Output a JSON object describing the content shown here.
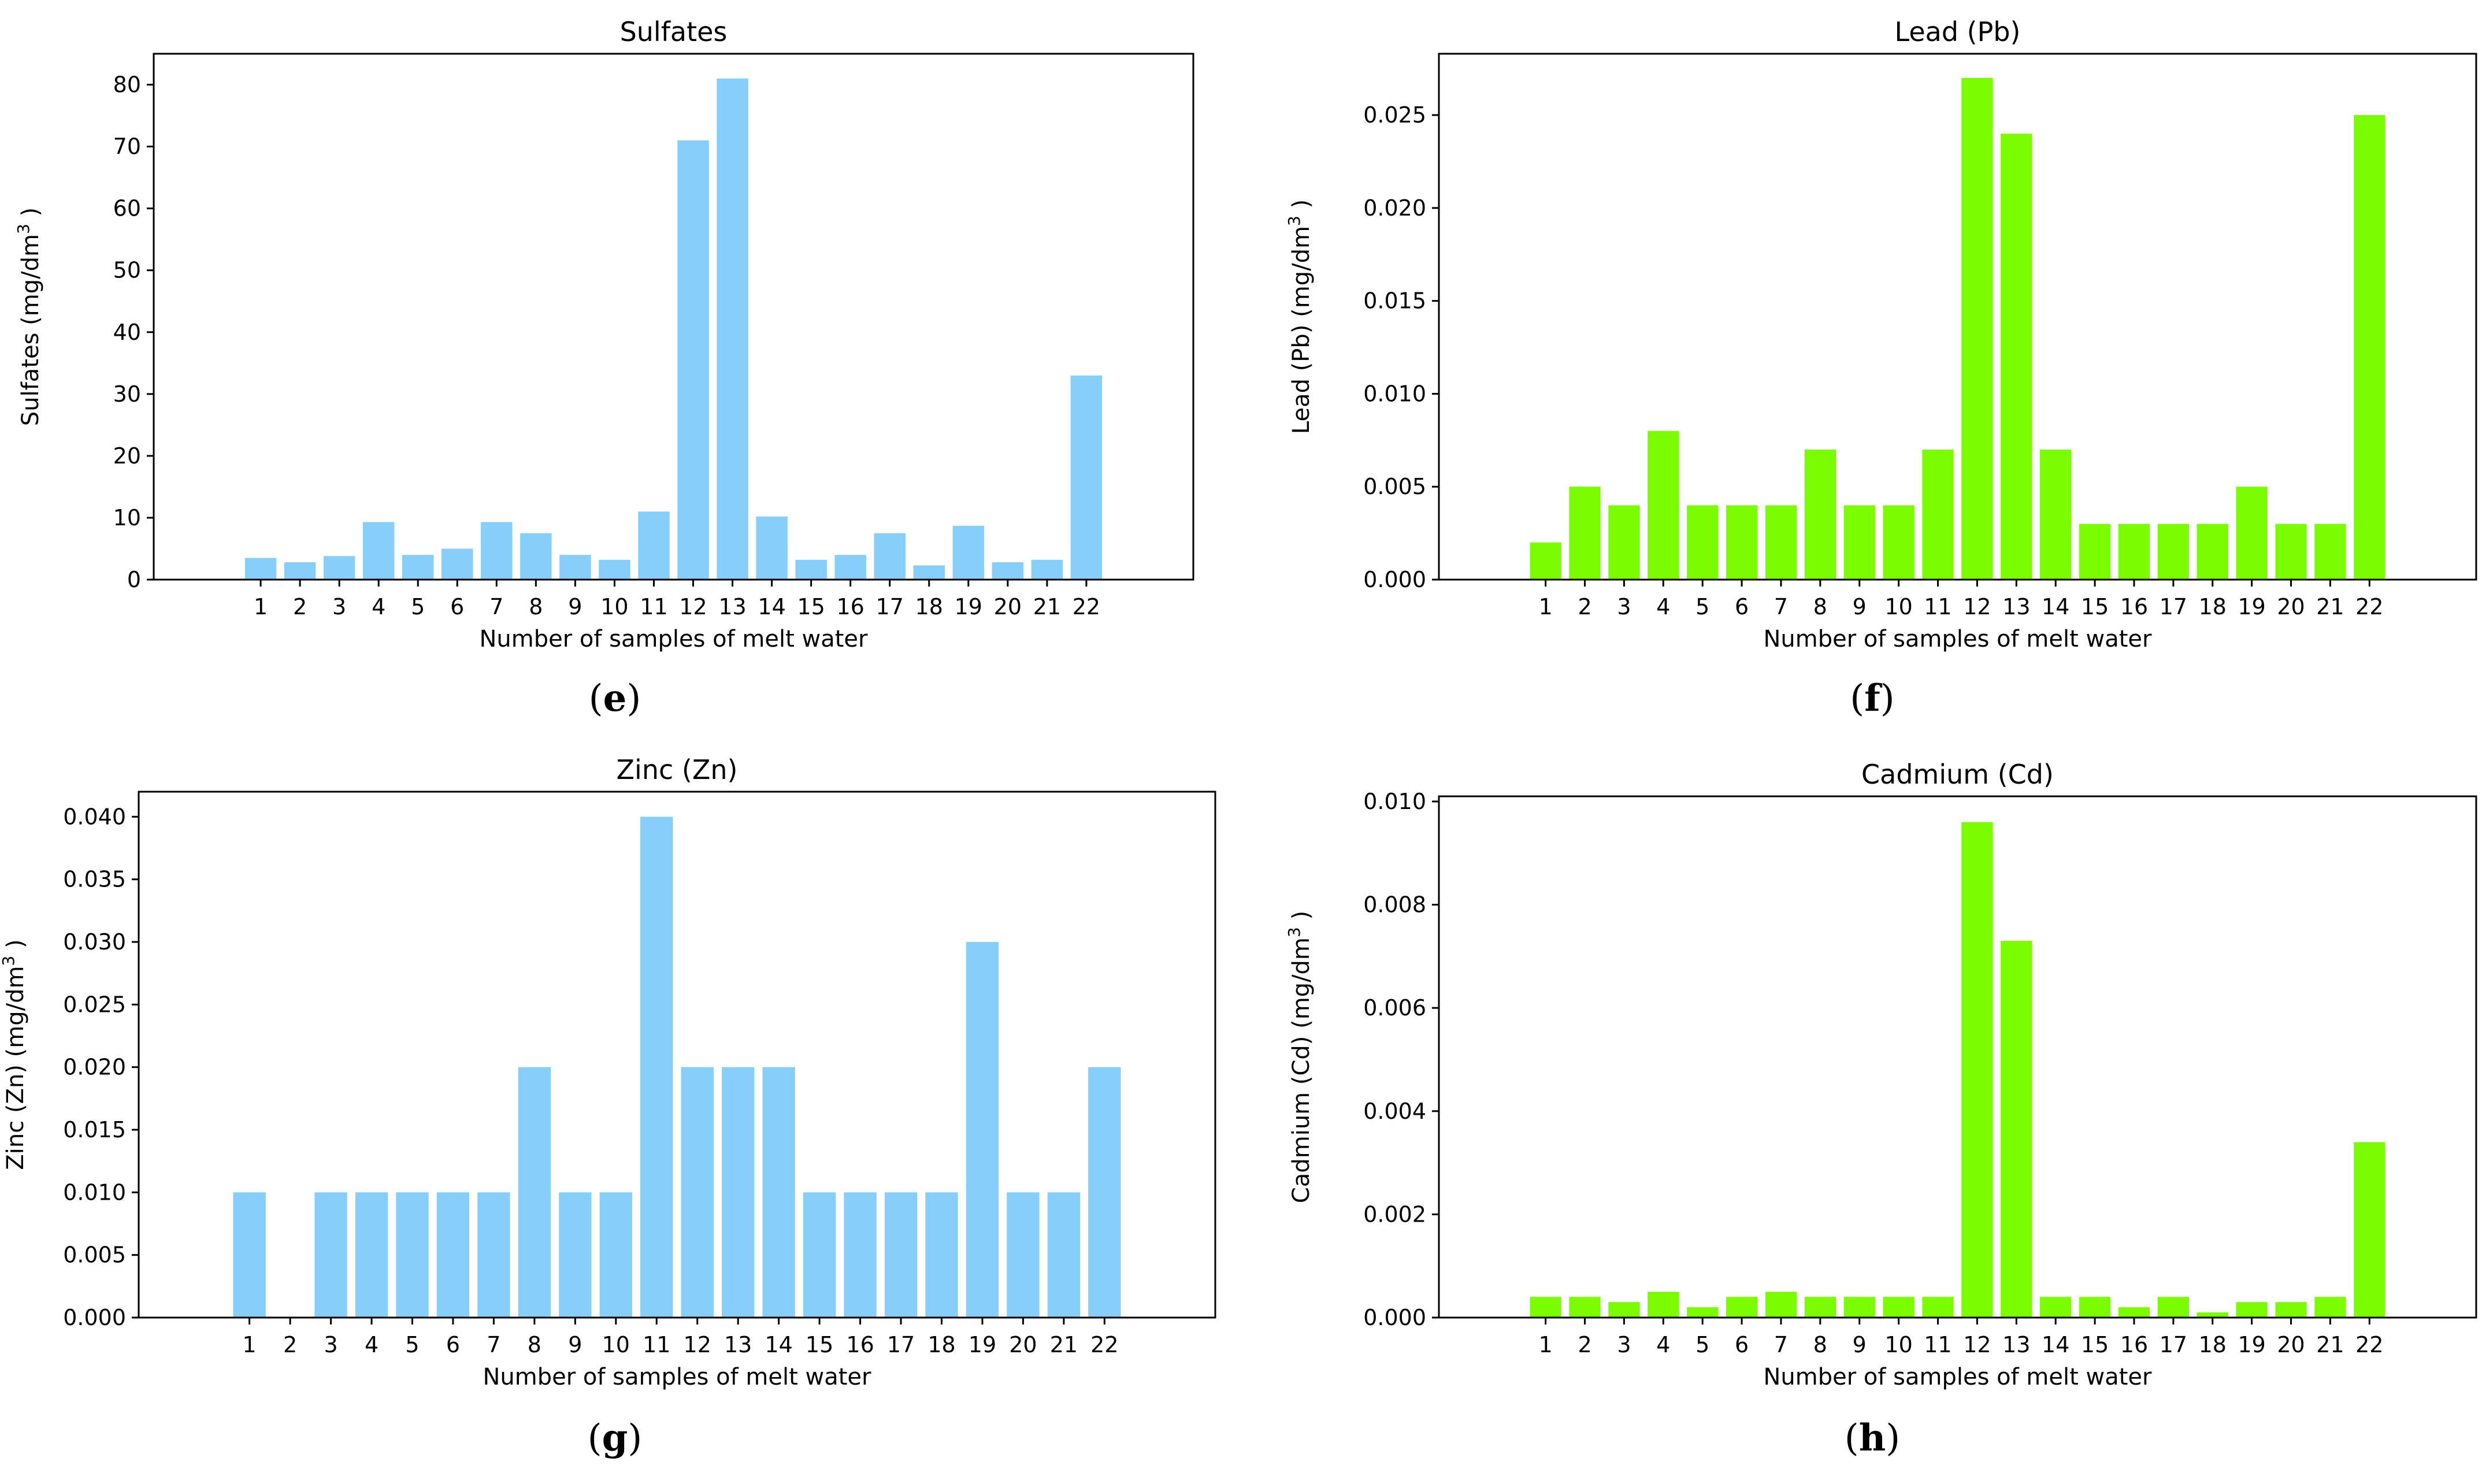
{
  "chart_data": [
    {
      "type": "bar",
      "panel": "e",
      "title": "Sulfates",
      "xlabel": "Number of samples of melt water",
      "ylabel": "Sulfates (mg/dm",
      "ylabel_sup": "3",
      "ylabel_end": " )",
      "color": "#87cefa",
      "ylim": [
        0,
        85
      ],
      "yticks": [
        0,
        10,
        20,
        30,
        40,
        50,
        60,
        70,
        80
      ],
      "ytick_labels": [
        "0",
        "10",
        "20",
        "30",
        "40",
        "50",
        "60",
        "70",
        "80"
      ],
      "categories": [
        "1",
        "2",
        "3",
        "4",
        "5",
        "6",
        "7",
        "8",
        "9",
        "10",
        "11",
        "12",
        "13",
        "14",
        "15",
        "16",
        "17",
        "18",
        "19",
        "20",
        "21",
        "22"
      ],
      "values": [
        3.5,
        2.8,
        3.8,
        9.3,
        4.0,
        5.0,
        9.3,
        7.5,
        4.0,
        3.2,
        11.0,
        71.0,
        81.0,
        10.2,
        3.2,
        4.0,
        7.5,
        2.3,
        8.7,
        2.8,
        3.2,
        33.0
      ]
    },
    {
      "type": "bar",
      "panel": "f",
      "title": "Lead (Pb)",
      "xlabel": "Number of samples of melt water",
      "ylabel": "Lead (Pb) (mg/dm",
      "ylabel_sup": "3",
      "ylabel_end": " )",
      "color": "#7cfc00",
      "ylim": [
        0,
        0.0283
      ],
      "yticks": [
        0,
        0.005,
        0.01,
        0.015,
        0.02,
        0.025
      ],
      "ytick_labels": [
        "0.000",
        "0.005",
        "0.010",
        "0.015",
        "0.020",
        "0.025"
      ],
      "categories": [
        "1",
        "2",
        "3",
        "4",
        "5",
        "6",
        "7",
        "8",
        "9",
        "10",
        "11",
        "12",
        "13",
        "14",
        "15",
        "16",
        "17",
        "18",
        "19",
        "20",
        "21",
        "22"
      ],
      "values": [
        0.002,
        0.005,
        0.004,
        0.008,
        0.004,
        0.004,
        0.004,
        0.007,
        0.004,
        0.004,
        0.007,
        0.027,
        0.024,
        0.007,
        0.003,
        0.003,
        0.003,
        0.003,
        0.005,
        0.003,
        0.003,
        0.025
      ]
    },
    {
      "type": "bar",
      "panel": "g",
      "title": "Zinc (Zn)",
      "xlabel": "Number of samples of melt water",
      "ylabel": "Zinc (Zn) (mg/dm",
      "ylabel_sup": "3",
      "ylabel_end": " )",
      "color": "#87cefa",
      "ylim": [
        0,
        0.042
      ],
      "yticks": [
        0,
        0.005,
        0.01,
        0.015,
        0.02,
        0.025,
        0.03,
        0.035,
        0.04
      ],
      "ytick_labels": [
        "0.000",
        "0.005",
        "0.010",
        "0.015",
        "0.020",
        "0.025",
        "0.030",
        "0.035",
        "0.040"
      ],
      "categories": [
        "1",
        "2",
        "3",
        "4",
        "5",
        "6",
        "7",
        "8",
        "9",
        "10",
        "11",
        "12",
        "13",
        "14",
        "15",
        "16",
        "17",
        "18",
        "19",
        "20",
        "21",
        "22"
      ],
      "values": [
        0.01,
        0,
        0.01,
        0.01,
        0.01,
        0.01,
        0.01,
        0.02,
        0.01,
        0.01,
        0.04,
        0.02,
        0.02,
        0.02,
        0.01,
        0.01,
        0.01,
        0.01,
        0.03,
        0.01,
        0.01,
        0.02
      ]
    },
    {
      "type": "bar",
      "panel": "h",
      "title": "Cadmium (Cd)",
      "xlabel": "Number of samples of melt water",
      "ylabel": "Cadmium (Cd) (mg/dm",
      "ylabel_sup": "3",
      "ylabel_end": " )",
      "color": "#7cfc00",
      "ylim": [
        0,
        0.0101
      ],
      "yticks": [
        0,
        0.002,
        0.004,
        0.006,
        0.008,
        0.01
      ],
      "ytick_labels": [
        "0.000",
        "0.002",
        "0.004",
        "0.006",
        "0.008",
        "0.010"
      ],
      "categories": [
        "1",
        "2",
        "3",
        "4",
        "5",
        "6",
        "7",
        "8",
        "9",
        "10",
        "11",
        "12",
        "13",
        "14",
        "15",
        "16",
        "17",
        "18",
        "19",
        "20",
        "21",
        "22"
      ],
      "values": [
        0.0004,
        0.0004,
        0.0003,
        0.0005,
        0.0002,
        0.0004,
        0.0005,
        0.0004,
        0.0004,
        0.0004,
        0.0004,
        0.0096,
        0.0073,
        0.0004,
        0.0004,
        0.0002,
        0.0004,
        0.0001,
        0.0003,
        0.0003,
        0.0004,
        0.0034
      ]
    }
  ]
}
